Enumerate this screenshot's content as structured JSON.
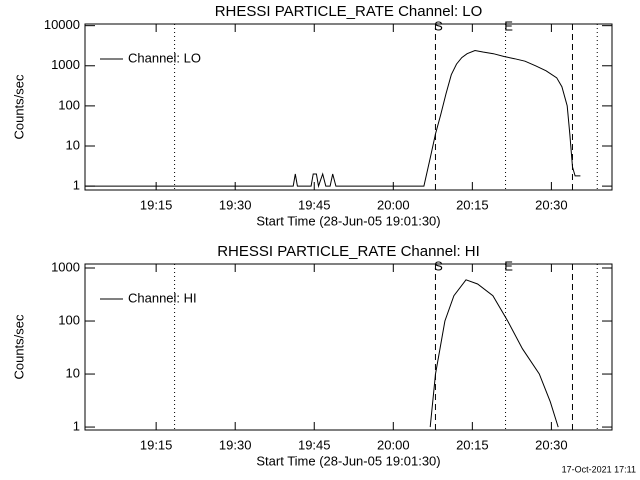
{
  "chart_data": [
    {
      "type": "line",
      "title": "RHESSI PARTICLE_RATE Channel: LO",
      "x_label": "Start Time (28-Jun-05 19:01:30)",
      "y_label": "Counts/sec",
      "log_y": true,
      "legend": "top-left",
      "color": "#000000",
      "xlim": [
        1141.5,
        1241.5
      ],
      "xticks": [
        {
          "value": 1155,
          "label": "19:15"
        },
        {
          "value": 1170,
          "label": "19:30"
        },
        {
          "value": 1185,
          "label": "19:45"
        },
        {
          "value": 1200,
          "label": "20:00"
        },
        {
          "value": 1215,
          "label": "20:15"
        },
        {
          "value": 1230,
          "label": "20:30"
        }
      ],
      "ylim": [
        0.8,
        11000
      ],
      "yticks": [
        1,
        10,
        100,
        1000,
        10000
      ],
      "markers": [
        {
          "x": 1158.5,
          "style": "dotted"
        },
        {
          "x": 1208,
          "style": "dashed"
        },
        {
          "x": 1221.3,
          "style": "dotted"
        },
        {
          "x": 1234,
          "style": "dashed"
        },
        {
          "x": 1238.7,
          "style": "dotted"
        }
      ],
      "annotations": [
        {
          "text": "S",
          "x": 1208
        },
        {
          "text": "E",
          "x": 1221.3
        }
      ],
      "series": [
        {
          "name": "Channel: LO",
          "x": [
            1141.5,
            1181.0,
            1181.4,
            1181.8,
            1184.4,
            1184.8,
            1185.4,
            1185.8,
            1186.6,
            1187.2,
            1188.0,
            1188.5,
            1189.1,
            1205.8,
            1207,
            1208,
            1209,
            1210,
            1211,
            1212,
            1213,
            1214,
            1215.5,
            1217,
            1219,
            1221,
            1223,
            1225,
            1227,
            1229,
            1231,
            1232,
            1233,
            1233.5,
            1234,
            1234.5,
            1235.5
          ],
          "values": [
            1,
            1,
            2,
            1,
            1,
            2,
            2,
            1,
            2,
            1,
            1,
            2,
            1,
            1,
            5,
            20,
            60,
            200,
            600,
            1100,
            1600,
            2000,
            2400,
            2200,
            2000,
            1700,
            1500,
            1300,
            1000,
            750,
            500,
            300,
            100,
            20,
            3,
            1.8,
            1.8
          ]
        }
      ]
    },
    {
      "type": "line",
      "title": "RHESSI PARTICLE_RATE Channel: HI",
      "x_label": "Start Time (28-Jun-05 19:01:30)",
      "y_label": "Counts/sec",
      "log_y": true,
      "legend": "top-left",
      "color": "#000000",
      "xlim": [
        1141.5,
        1241.5
      ],
      "xticks": [
        {
          "value": 1155,
          "label": "19:15"
        },
        {
          "value": 1170,
          "label": "19:30"
        },
        {
          "value": 1185,
          "label": "19:45"
        },
        {
          "value": 1200,
          "label": "20:00"
        },
        {
          "value": 1215,
          "label": "20:15"
        },
        {
          "value": 1230,
          "label": "20:30"
        }
      ],
      "ylim": [
        0.88,
        1190
      ],
      "yticks": [
        1,
        10,
        100,
        1000
      ],
      "markers": [
        {
          "x": 1158.5,
          "style": "dotted"
        },
        {
          "x": 1208,
          "style": "dashed"
        },
        {
          "x": 1221.3,
          "style": "dotted"
        },
        {
          "x": 1234,
          "style": "dashed"
        },
        {
          "x": 1238.7,
          "style": "dotted"
        }
      ],
      "annotations": [
        {
          "text": "S",
          "x": 1208
        },
        {
          "text": "E",
          "x": 1221.3
        }
      ],
      "series": [
        {
          "name": "Channel: HI",
          "x": [
            1207,
            1208,
            1209.8,
            1211.5,
            1213.8,
            1216,
            1218.9,
            1221.7,
            1224.5,
            1227.7,
            1229.8,
            1231.3
          ],
          "values": [
            1,
            10,
            100,
            300,
            600,
            500,
            300,
            100,
            30,
            10,
            3,
            1
          ]
        }
      ]
    }
  ],
  "footer": "17-Oct-2021 17:11"
}
